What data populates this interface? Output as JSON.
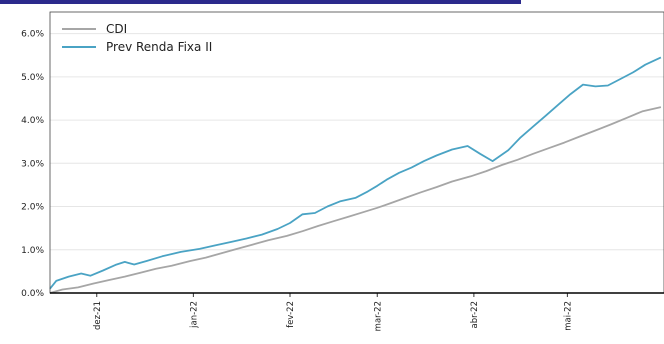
{
  "chart_data": {
    "type": "line",
    "title": "",
    "xlabel": "",
    "ylabel": "",
    "ylim": [
      0,
      6.5
    ],
    "yticks": [
      {
        "value": 0,
        "label": "0.0%"
      },
      {
        "value": 1,
        "label": "1.0%"
      },
      {
        "value": 2,
        "label": "2.0%"
      },
      {
        "value": 3,
        "label": "3.0%"
      },
      {
        "value": 4,
        "label": "4.0%"
      },
      {
        "value": 5,
        "label": "5.0%"
      },
      {
        "value": 6,
        "label": "6.0%"
      }
    ],
    "xlim": [
      "2021-11-16",
      "2022-06-01"
    ],
    "xticks": [
      {
        "date": "2021-12-01",
        "label": "dez-21"
      },
      {
        "date": "2022-01-01",
        "label": "jan-22"
      },
      {
        "date": "2022-02-01",
        "label": "fev-22"
      },
      {
        "date": "2022-03-01",
        "label": "mar-22"
      },
      {
        "date": "2022-04-01",
        "label": "abr-22"
      },
      {
        "date": "2022-05-01",
        "label": "mai-22"
      }
    ],
    "grid": "horizontal",
    "legend": "top-left",
    "series": [
      {
        "name": "CDI",
        "color": "#a6a6a6",
        "points": [
          [
            "2021-11-16",
            0.0
          ],
          [
            "2021-11-20",
            0.08
          ],
          [
            "2021-11-25",
            0.13
          ],
          [
            "2021-11-30",
            0.22
          ],
          [
            "2021-12-05",
            0.3
          ],
          [
            "2021-12-10",
            0.38
          ],
          [
            "2021-12-15",
            0.47
          ],
          [
            "2021-12-20",
            0.56
          ],
          [
            "2021-12-25",
            0.63
          ],
          [
            "2021-12-31",
            0.74
          ],
          [
            "2022-01-05",
            0.82
          ],
          [
            "2022-01-10",
            0.92
          ],
          [
            "2022-01-15",
            1.02
          ],
          [
            "2022-01-20",
            1.12
          ],
          [
            "2022-01-25",
            1.22
          ],
          [
            "2022-01-31",
            1.32
          ],
          [
            "2022-02-05",
            1.43
          ],
          [
            "2022-02-10",
            1.55
          ],
          [
            "2022-02-15",
            1.66
          ],
          [
            "2022-02-20",
            1.77
          ],
          [
            "2022-02-25",
            1.88
          ],
          [
            "2022-03-01",
            1.97
          ],
          [
            "2022-03-05",
            2.07
          ],
          [
            "2022-03-10",
            2.2
          ],
          [
            "2022-03-15",
            2.33
          ],
          [
            "2022-03-20",
            2.45
          ],
          [
            "2022-03-25",
            2.58
          ],
          [
            "2022-03-31",
            2.7
          ],
          [
            "2022-04-05",
            2.82
          ],
          [
            "2022-04-10",
            2.96
          ],
          [
            "2022-04-15",
            3.08
          ],
          [
            "2022-04-20",
            3.22
          ],
          [
            "2022-04-25",
            3.35
          ],
          [
            "2022-04-30",
            3.48
          ],
          [
            "2022-05-05",
            3.62
          ],
          [
            "2022-05-10",
            3.76
          ],
          [
            "2022-05-15",
            3.9
          ],
          [
            "2022-05-20",
            4.05
          ],
          [
            "2022-05-25",
            4.2
          ],
          [
            "2022-05-31",
            4.3
          ]
        ]
      },
      {
        "name": "Prev Renda Fixa II",
        "color": "#4aa3c4",
        "points": [
          [
            "2021-11-16",
            0.1
          ],
          [
            "2021-11-18",
            0.28
          ],
          [
            "2021-11-22",
            0.38
          ],
          [
            "2021-11-26",
            0.45
          ],
          [
            "2021-11-29",
            0.4
          ],
          [
            "2021-12-03",
            0.52
          ],
          [
            "2021-12-07",
            0.65
          ],
          [
            "2021-12-10",
            0.72
          ],
          [
            "2021-12-13",
            0.66
          ],
          [
            "2021-12-17",
            0.74
          ],
          [
            "2021-12-22",
            0.85
          ],
          [
            "2021-12-28",
            0.95
          ],
          [
            "2022-01-03",
            1.02
          ],
          [
            "2022-01-08",
            1.1
          ],
          [
            "2022-01-13",
            1.18
          ],
          [
            "2022-01-18",
            1.26
          ],
          [
            "2022-01-23",
            1.35
          ],
          [
            "2022-01-28",
            1.48
          ],
          [
            "2022-02-01",
            1.62
          ],
          [
            "2022-02-05",
            1.82
          ],
          [
            "2022-02-09",
            1.85
          ],
          [
            "2022-02-13",
            2.0
          ],
          [
            "2022-02-17",
            2.12
          ],
          [
            "2022-02-22",
            2.2
          ],
          [
            "2022-02-26",
            2.35
          ],
          [
            "2022-03-01",
            2.48
          ],
          [
            "2022-03-04",
            2.62
          ],
          [
            "2022-03-08",
            2.78
          ],
          [
            "2022-03-12",
            2.9
          ],
          [
            "2022-03-16",
            3.05
          ],
          [
            "2022-03-20",
            3.18
          ],
          [
            "2022-03-25",
            3.32
          ],
          [
            "2022-03-30",
            3.4
          ],
          [
            "2022-04-03",
            3.22
          ],
          [
            "2022-04-07",
            3.05
          ],
          [
            "2022-04-12",
            3.3
          ],
          [
            "2022-04-16",
            3.6
          ],
          [
            "2022-04-20",
            3.85
          ],
          [
            "2022-04-24",
            4.1
          ],
          [
            "2022-04-28",
            4.35
          ],
          [
            "2022-05-02",
            4.6
          ],
          [
            "2022-05-06",
            4.82
          ],
          [
            "2022-05-10",
            4.78
          ],
          [
            "2022-05-14",
            4.8
          ],
          [
            "2022-05-18",
            4.95
          ],
          [
            "2022-05-22",
            5.1
          ],
          [
            "2022-05-26",
            5.28
          ],
          [
            "2022-05-31",
            5.45
          ]
        ]
      }
    ]
  }
}
